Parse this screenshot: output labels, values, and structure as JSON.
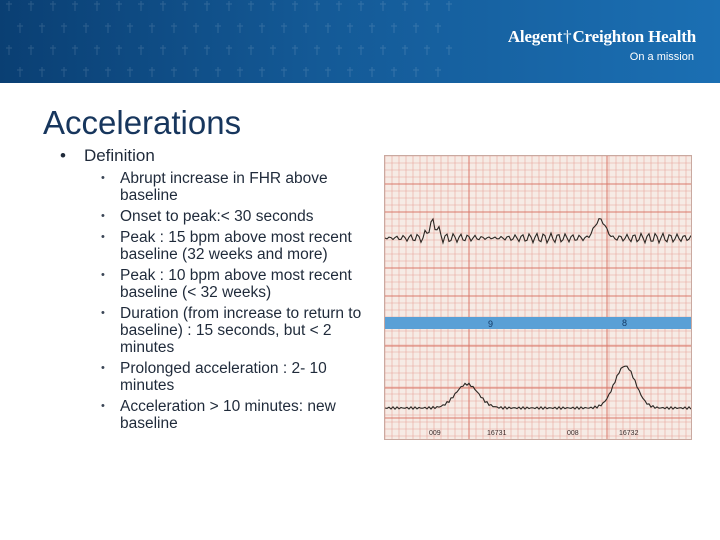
{
  "header": {
    "logo_part1": "Alegent",
    "logo_cross": "†",
    "logo_part2": "Creighton Health",
    "tagline": "On a mission"
  },
  "slide": {
    "title": "Accelerations",
    "bullet_main": "Definition",
    "sub_bullets": [
      "Abrupt increase in FHR above baseline",
      "Onset to peak:< 30 seconds",
      "Peak : 15 bpm above most recent baseline (32 weeks and more)",
      "Peak : 10 bpm above most recent baseline (< 32 weeks)",
      "Duration (from increase to return to baseline) : 15 seconds, but < 2 minutes",
      "Prolonged acceleration : 2- 10 minutes",
      "Acceleration > 10 minutes: new baseline"
    ]
  },
  "strip": {
    "band_left": "9",
    "band_right": "8",
    "footer_left": "009",
    "footer_mid": "16731",
    "footer_right": "008",
    "footer_far": "16732"
  },
  "colors": {
    "banner": "#145a97",
    "title": "#17365d",
    "grid": "#e8a49a",
    "band": "#5aa0d6"
  }
}
